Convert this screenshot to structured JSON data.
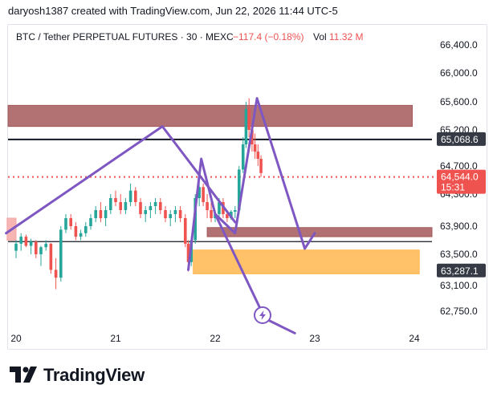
{
  "header": {
    "caption": "daryosh1387 created with TradingView.com, Jun 22, 2026 11:44 UTC-5"
  },
  "legend": {
    "symbol": "BTC / Tether PERPETUAL FUTURES · 30 · MEXC",
    "change": "−117.4 (−0.18%)",
    "vol_label": "Vol",
    "vol_value": "11.32 M"
  },
  "footer": {
    "brand": "TradingView"
  },
  "colors": {
    "up": "#26a69a",
    "down": "#ef5350",
    "purple": "#7e57c2",
    "supply": "#a4595b",
    "demand": "#ffb74d",
    "text": "#131722"
  },
  "chart_data": {
    "type": "candlestick-annotated",
    "title": "BTC / Tether PERPETUAL FUTURES · 30 · MEXC",
    "x_ticks": [
      "20",
      "21",
      "22",
      "23",
      "24"
    ],
    "y_ticks": [
      "66,400.0",
      "66,000.0",
      "65,600.0",
      "65,200.0",
      "64,700.0",
      "64,300.0",
      "63,900.0",
      "63,500.0",
      "63,100.0",
      "62,750.0"
    ],
    "ylim": [
      62450,
      66700
    ],
    "price_labels": [
      {
        "value": 65068.6,
        "text": "65,068.6",
        "style": "dark"
      },
      {
        "value": 64544.0,
        "text": "64,544.0",
        "sub": "15:31",
        "style": "red"
      },
      {
        "value": 63287.1,
        "text": "63,287.1",
        "style": "dark"
      }
    ],
    "horizontal_lines": [
      {
        "value": 65068.6,
        "color": "#131722",
        "width": 2
      },
      {
        "value": 63680,
        "color": "#131722",
        "width": 1.2
      },
      {
        "value": 64544.0,
        "color": "#ef5350",
        "dotted": true
      }
    ],
    "zones": [
      {
        "name": "supply-zone-upper",
        "x_start": 19.92,
        "x_end": 23.98,
        "top": 65550,
        "bottom": 65250,
        "color": "#a4595b"
      },
      {
        "name": "supply-zone-lower",
        "x_start": 21.92,
        "x_end": 24.2,
        "top": 63880,
        "bottom": 63750,
        "color": "#a4595b"
      },
      {
        "name": "demand-zone",
        "x_start": 21.78,
        "x_end": 24.05,
        "top": 63560,
        "bottom": 63250,
        "color": "#ffb74d"
      },
      {
        "name": "left-zone",
        "x_start": 19.91,
        "x_end": 20.0,
        "top": 64000,
        "bottom": 63700,
        "color": "#f4a7a6"
      }
    ],
    "drawings": [
      {
        "name": "purple-path-left",
        "points": [
          [
            19.9,
            63800
          ],
          [
            21.47,
            65250
          ],
          [
            22.2,
            63950
          ]
        ]
      },
      {
        "name": "purple-path-right",
        "points": [
          [
            21.73,
            63300
          ],
          [
            21.86,
            64800
          ],
          [
            22.0,
            64050
          ],
          [
            22.2,
            63800
          ],
          [
            22.42,
            65650
          ],
          [
            22.9,
            63580
          ],
          [
            23.0,
            63800
          ]
        ]
      },
      {
        "name": "purple-path-projection",
        "points": [
          [
            22.0,
            64050
          ],
          [
            22.5,
            62650
          ],
          [
            22.8,
            62450
          ]
        ]
      }
    ],
    "candles": [
      [
        20.0,
        63550,
        63700,
        63450,
        63650
      ],
      [
        20.05,
        63650,
        63800,
        63550,
        63750
      ],
      [
        20.1,
        63750,
        63780,
        63600,
        63620
      ],
      [
        20.15,
        63620,
        63720,
        63500,
        63680
      ],
      [
        20.2,
        63680,
        63700,
        63450,
        63500
      ],
      [
        20.25,
        63500,
        63620,
        63350,
        63600
      ],
      [
        20.3,
        63600,
        63700,
        63550,
        63650
      ],
      [
        20.35,
        63650,
        63660,
        63250,
        63300
      ],
      [
        20.4,
        63300,
        63450,
        63050,
        63200
      ],
      [
        20.45,
        63200,
        63900,
        63150,
        63850
      ],
      [
        20.5,
        63850,
        64050,
        63800,
        64000
      ],
      [
        20.55,
        64000,
        64050,
        63850,
        63900
      ],
      [
        20.6,
        63900,
        63950,
        63700,
        63750
      ],
      [
        20.65,
        63750,
        63850,
        63700,
        63800
      ],
      [
        20.7,
        63800,
        63950,
        63750,
        63900
      ],
      [
        20.75,
        63900,
        64050,
        63850,
        64000
      ],
      [
        20.8,
        64000,
        64150,
        63950,
        64100
      ],
      [
        20.85,
        64100,
        64200,
        63950,
        64000
      ],
      [
        20.9,
        64000,
        64150,
        63900,
        64100
      ],
      [
        20.95,
        64100,
        64300,
        64050,
        64250
      ],
      [
        21.0,
        64250,
        64350,
        64150,
        64200
      ],
      [
        21.05,
        64200,
        64300,
        64050,
        64100
      ],
      [
        21.1,
        64100,
        64250,
        64050,
        64200
      ],
      [
        21.15,
        64200,
        64450,
        64150,
        64350
      ],
      [
        21.2,
        64350,
        64400,
        64150,
        64200
      ],
      [
        21.25,
        64200,
        64250,
        64000,
        64050
      ],
      [
        21.3,
        64050,
        64150,
        63950,
        64100
      ],
      [
        21.35,
        64100,
        64200,
        64000,
        64150
      ],
      [
        21.4,
        64150,
        64250,
        64050,
        64200
      ],
      [
        21.45,
        64200,
        64250,
        64050,
        64100
      ],
      [
        21.5,
        64100,
        64150,
        63950,
        64000
      ],
      [
        21.55,
        64000,
        64100,
        63900,
        64050
      ],
      [
        21.6,
        64050,
        64150,
        63950,
        64100
      ],
      [
        21.65,
        64100,
        64150,
        63950,
        64000
      ],
      [
        21.7,
        64000,
        64050,
        63600,
        63650
      ],
      [
        21.73,
        63650,
        63700,
        63280,
        63400
      ],
      [
        21.76,
        63400,
        63750,
        63350,
        63700
      ],
      [
        21.8,
        63700,
        64300,
        63650,
        64250
      ],
      [
        21.84,
        64250,
        64500,
        64150,
        64400
      ],
      [
        21.88,
        64400,
        64450,
        64150,
        64200
      ],
      [
        21.92,
        64200,
        64300,
        64000,
        64100
      ],
      [
        21.96,
        64100,
        64200,
        63950,
        64000
      ],
      [
        22.0,
        64000,
        64100,
        63950,
        64050
      ],
      [
        22.04,
        64050,
        64250,
        64000,
        64200
      ],
      [
        22.08,
        64200,
        64250,
        64000,
        64050
      ],
      [
        22.12,
        64050,
        64100,
        63950,
        64000
      ],
      [
        22.16,
        64000,
        64100,
        63980,
        64080
      ],
      [
        22.2,
        64080,
        64150,
        64000,
        64100
      ],
      [
        22.24,
        64100,
        64700,
        64050,
        64650
      ],
      [
        22.28,
        64650,
        65100,
        64600,
        65000
      ],
      [
        22.31,
        65000,
        65600,
        64950,
        65500
      ],
      [
        22.34,
        65500,
        65650,
        65100,
        65200
      ],
      [
        22.37,
        65200,
        65300,
        64900,
        65000
      ],
      [
        22.4,
        65000,
        65150,
        64800,
        64900
      ],
      [
        22.43,
        64900,
        65000,
        64700,
        64800
      ],
      [
        22.46,
        64800,
        64850,
        64544,
        64600
      ]
    ]
  }
}
